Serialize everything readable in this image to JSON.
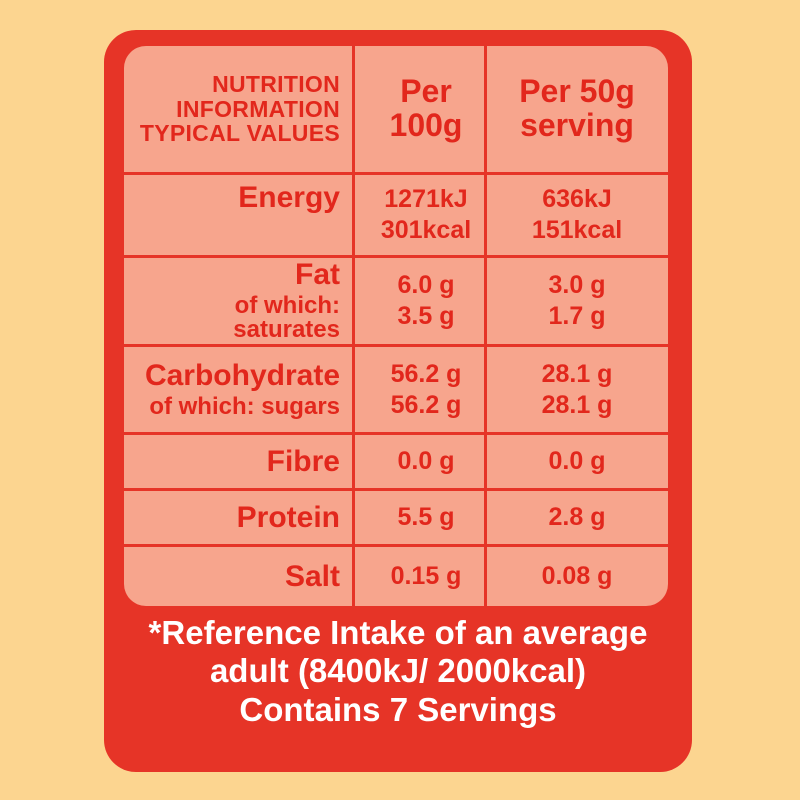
{
  "header": {
    "label_lines": [
      "NUTRITION",
      "INFORMATION",
      "TYPICAL VALUES"
    ],
    "per100_lines": [
      "Per",
      "100g"
    ],
    "perServing_lines": [
      "Per 50g",
      "serving"
    ]
  },
  "rows": [
    {
      "name": "Energy",
      "sub": "",
      "per100": [
        "1271kJ",
        "301kcal"
      ],
      "perServing": [
        "636kJ",
        "151kcal"
      ]
    },
    {
      "name": "Fat",
      "sub": "of which: saturates",
      "per100": [
        "6.0 g",
        "3.5 g"
      ],
      "perServing": [
        "3.0 g",
        "1.7 g"
      ]
    },
    {
      "name": "Carbohydrate",
      "sub": "of which: sugars",
      "per100": [
        "56.2 g",
        "56.2 g"
      ],
      "perServing": [
        "28.1 g",
        "28.1 g"
      ]
    },
    {
      "name": "Fibre",
      "sub": "",
      "per100": [
        "0.0 g"
      ],
      "perServing": [
        "0.0 g"
      ]
    },
    {
      "name": "Protein",
      "sub": "",
      "per100": [
        "5.5 g"
      ],
      "perServing": [
        "2.8 g"
      ]
    },
    {
      "name": "Salt",
      "sub": "",
      "per100": [
        "0.15 g"
      ],
      "perServing": [
        "0.08 g"
      ]
    }
  ],
  "footer": {
    "lines": [
      "*Reference Intake of an average",
      "adult (8400kJ/ 2000kcal)",
      "Contains 7 Servings"
    ]
  },
  "colors": {
    "background": "#fcd590",
    "panel_red": "#e63427",
    "table_fill": "#f7a58d",
    "text_red": "#e2271c",
    "footer_text": "#ffffff"
  }
}
